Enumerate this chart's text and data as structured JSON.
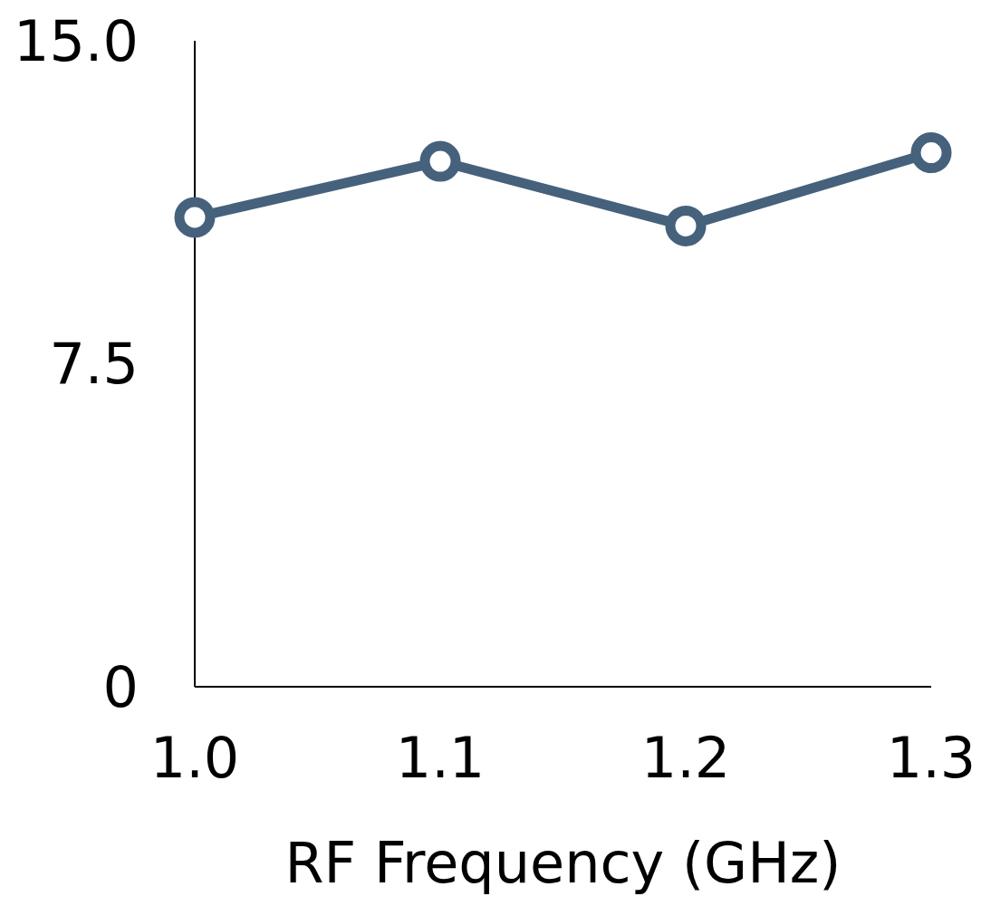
{
  "chart_data": {
    "type": "line",
    "xlabel": "RF Frequency (GHz)",
    "x": [
      1.0,
      1.1,
      1.2,
      1.3
    ],
    "series": [
      {
        "color": "#46617c",
        "values": [
          10.9,
          12.2,
          10.7,
          12.4
        ]
      }
    ],
    "xlim": [
      1.0,
      1.3
    ],
    "xticks": [
      {
        "value": 1.0,
        "label": "1.0"
      },
      1.1,
      1.2,
      1.3
    ],
    "ylim": [
      0,
      15
    ],
    "yticks": [
      0,
      7.5,
      {
        "value": 15,
        "label": "15.0"
      }
    ],
    "marker": "circle",
    "line_style": "solid",
    "grid": false
  }
}
